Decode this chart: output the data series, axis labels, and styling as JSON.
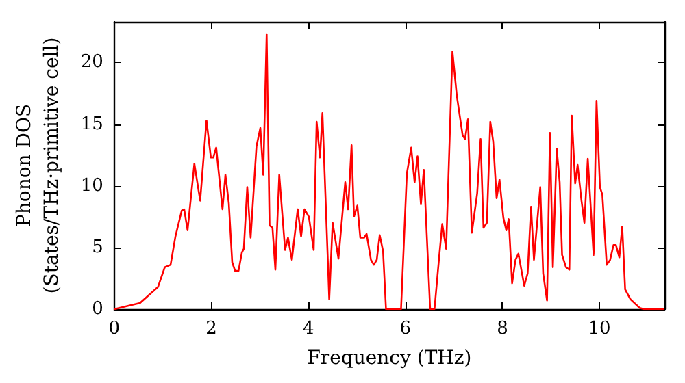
{
  "chart_data": {
    "type": "line",
    "xlabel": "Frequency (THz)",
    "ylabel": "Phonon DOS\n(States/THz·primitive cell)",
    "xlim": [
      0,
      11.34
    ],
    "ylim": [
      0,
      23.3
    ],
    "xticks": [
      0,
      2,
      4,
      6,
      8,
      10
    ],
    "yticks": [
      0,
      5,
      10,
      15,
      20
    ],
    "grid": false,
    "marker": "none",
    "line_style": "solid",
    "series": [
      {
        "color": "#ff0000",
        "x": [
          0,
          0.53,
          0.9,
          1.04,
          1.16,
          1.26,
          1.39,
          1.44,
          1.51,
          1.65,
          1.77,
          1.9,
          1.99,
          2.04,
          2.1,
          2.23,
          2.29,
          2.36,
          2.43,
          2.49,
          2.56,
          2.63,
          2.67,
          2.74,
          2.81,
          2.93,
          3.01,
          3.07,
          3.14,
          3.2,
          3.26,
          3.32,
          3.4,
          3.52,
          3.58,
          3.66,
          3.78,
          3.85,
          3.92,
          4.01,
          4.11,
          4.17,
          4.24,
          4.29,
          4.43,
          4.5,
          4.62,
          4.76,
          4.82,
          4.89,
          4.94,
          5.01,
          5.07,
          5.15,
          5.2,
          5.29,
          5.35,
          5.41,
          5.47,
          5.54,
          5.6,
          5.91,
          6.03,
          6.12,
          6.19,
          6.25,
          6.32,
          6.38,
          6.51,
          6.6,
          6.7,
          6.76,
          6.84,
          6.97,
          7.06,
          7.18,
          7.23,
          7.29,
          7.37,
          7.48,
          7.55,
          7.61,
          7.68,
          7.75,
          7.81,
          7.88,
          7.94,
          8.02,
          8.08,
          8.13,
          8.2,
          8.27,
          8.33,
          8.45,
          8.52,
          8.59,
          8.65,
          8.78,
          8.84,
          8.92,
          8.98,
          9.04,
          9.12,
          9.18,
          9.23,
          9.31,
          9.38,
          9.43,
          9.5,
          9.55,
          9.63,
          9.69,
          9.76,
          9.88,
          9.94,
          10.01,
          10.06,
          10.15,
          10.22,
          10.29,
          10.34,
          10.41,
          10.47,
          10.53,
          10.64,
          10.83,
          10.92,
          11.34
        ],
        "values": [
          0,
          0.5,
          1.8,
          3.4,
          3.6,
          5.9,
          8.0,
          8.1,
          6.4,
          11.8,
          8.8,
          15.3,
          12.3,
          12.3,
          13.1,
          8.1,
          10.9,
          8.6,
          3.8,
          3.1,
          3.1,
          4.6,
          4.9,
          9.9,
          5.8,
          13.2,
          14.7,
          10.9,
          22.3,
          6.8,
          6.6,
          3.2,
          10.9,
          4.8,
          5.8,
          4.0,
          8.1,
          5.9,
          8.1,
          7.5,
          4.8,
          15.2,
          12.3,
          15.9,
          0.8,
          7.0,
          4.1,
          10.3,
          8.1,
          13.3,
          7.5,
          8.4,
          5.8,
          5.8,
          6.1,
          4.0,
          3.6,
          4.0,
          6.0,
          4.7,
          0,
          0,
          11.0,
          13.1,
          10.3,
          12.4,
          8.5,
          11.3,
          0,
          0,
          4.4,
          6.9,
          4.9,
          20.9,
          17.3,
          14.1,
          13.8,
          15.4,
          6.2,
          9.4,
          13.8,
          6.6,
          7.0,
          15.2,
          13.6,
          9.0,
          10.5,
          7.4,
          6.4,
          7.3,
          2.1,
          4.0,
          4.5,
          1.9,
          2.9,
          8.3,
          4.0,
          9.9,
          2.9,
          0.7,
          14.3,
          3.4,
          13.0,
          10.3,
          4.4,
          3.4,
          3.2,
          15.7,
          10.2,
          11.7,
          8.8,
          7.0,
          12.2,
          4.4,
          16.9,
          9.9,
          9.3,
          3.6,
          4.0,
          5.2,
          5.2,
          4.2,
          6.7,
          1.6,
          0.8,
          0.1,
          0,
          0
        ]
      }
    ]
  }
}
